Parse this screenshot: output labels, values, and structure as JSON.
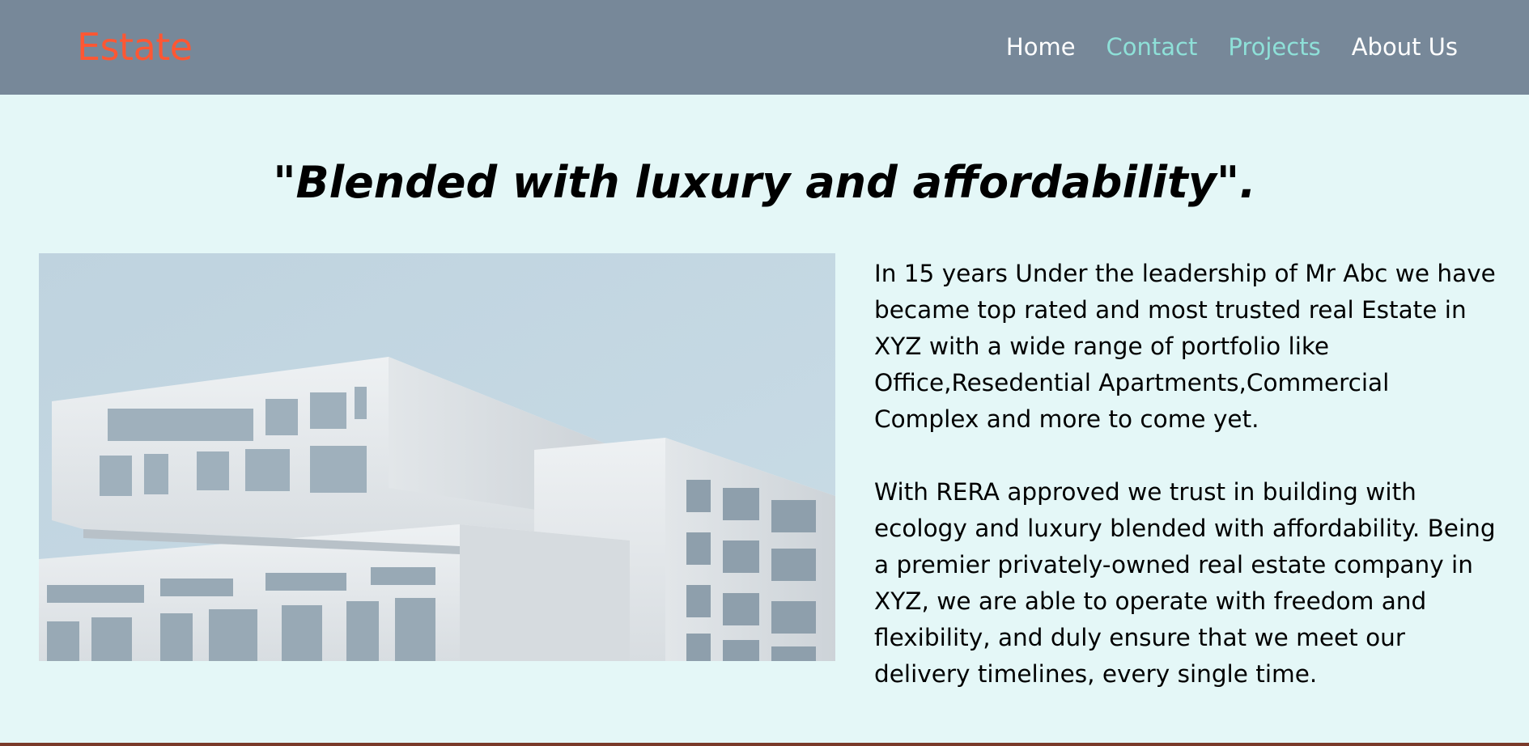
{
  "header": {
    "brand": "Estate",
    "nav": [
      {
        "label": "Home",
        "color": "#FFFFFF"
      },
      {
        "label": "Contact",
        "color": "#8EE0D8"
      },
      {
        "label": "Projects",
        "color": "#8EE0D8"
      },
      {
        "label": "About Us",
        "color": "#FFFFFF"
      }
    ]
  },
  "hero": {
    "tagline": "\"Blended with luxury and affordability\"."
  },
  "about": {
    "paragraph_1": "In 15 years Under the leadership of Mr Abc we have became top rated and most trusted real Estate in XYZ with a wide range of portfolio like Office,Resedential Apartments,Commercial Complex and more to come yet.",
    "paragraph_2": "With RERA approved we trust in building with ecology and luxury blended with affordability. Being a premier privately-owned real estate company in XYZ, we are able to operate with freedom and flexibility, and duly ensure that we meet our delivery timelines, every single time."
  },
  "colors": {
    "navbar_bg": "#778899",
    "brand": "#FF5733",
    "page_bg": "#E4F7F7",
    "nav_accent": "#8EE0D8"
  }
}
